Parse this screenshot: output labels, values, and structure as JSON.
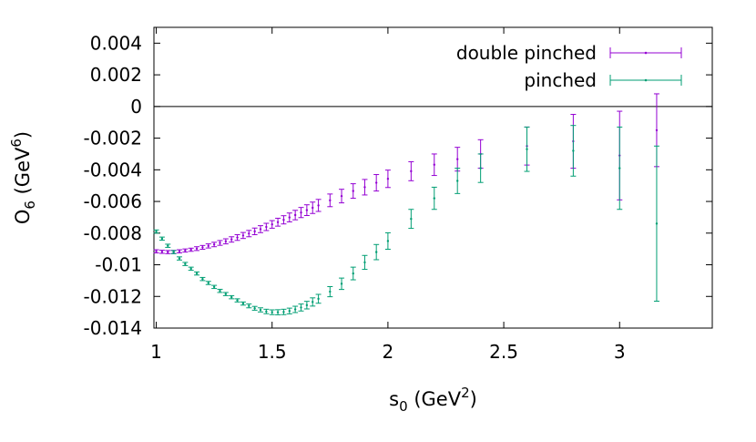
{
  "chart_data": {
    "type": "scatter",
    "xlabel": {
      "base": "s",
      "sub": "0",
      "unit_pre": " (GeV",
      "sup": "2",
      "unit_post": ")"
    },
    "ylabel": {
      "base": "O",
      "sub": "6",
      "unit_pre": " (GeV",
      "sup": "6",
      "unit_post": ")"
    },
    "xlim": [
      0.99,
      3.4
    ],
    "ylim": [
      -0.014,
      0.005
    ],
    "xticks": [
      1,
      1.5,
      2,
      2.5,
      3
    ],
    "xtick_labels": [
      "1",
      "1.5",
      "2",
      "2.5",
      "3"
    ],
    "yticks": [
      0.004,
      0.002,
      0,
      -0.002,
      -0.004,
      -0.006,
      -0.008,
      -0.01,
      -0.012,
      -0.014
    ],
    "ytick_labels": [
      "0.004",
      "0.002",
      "0",
      "-0.002",
      "-0.004",
      "-0.006",
      "-0.008",
      "-0.01",
      "-0.012",
      "-0.014"
    ],
    "zero_line": true,
    "grid": false,
    "legend_position": "top-right",
    "series": [
      {
        "name": "double pinched",
        "color": "#9400d3",
        "x": [
          1.0,
          1.025,
          1.05,
          1.075,
          1.1,
          1.125,
          1.15,
          1.175,
          1.2,
          1.225,
          1.25,
          1.275,
          1.3,
          1.325,
          1.35,
          1.375,
          1.4,
          1.425,
          1.45,
          1.475,
          1.5,
          1.525,
          1.55,
          1.575,
          1.6,
          1.625,
          1.65,
          1.675,
          1.7,
          1.75,
          1.8,
          1.85,
          1.9,
          1.95,
          2.0,
          2.1,
          2.2,
          2.3,
          2.4,
          2.6,
          2.8,
          3.0,
          3.16
        ],
        "y": [
          -0.00915,
          -0.00918,
          -0.0092,
          -0.00919,
          -0.00915,
          -0.0091,
          -0.00905,
          -0.00898,
          -0.0089,
          -0.00881,
          -0.00872,
          -0.00862,
          -0.00852,
          -0.0084,
          -0.00828,
          -0.00815,
          -0.00803,
          -0.00789,
          -0.00775,
          -0.00761,
          -0.00745,
          -0.00731,
          -0.00716,
          -0.00701,
          -0.00686,
          -0.0067,
          -0.00655,
          -0.0064,
          -0.00625,
          -0.00593,
          -0.00566,
          -0.00534,
          -0.0051,
          -0.00482,
          -0.00457,
          -0.00409,
          -0.00368,
          -0.00333,
          -0.003,
          -0.0025,
          -0.0022,
          -0.0031,
          -0.0015
        ],
        "err": [
          0.0001,
          0.0001,
          0.0001,
          0.0001,
          0.0001,
          0.0001,
          0.0001,
          0.00012,
          0.00012,
          0.00013,
          0.00014,
          0.00015,
          0.00016,
          0.00017,
          0.00018,
          0.00019,
          0.0002,
          0.00021,
          0.00022,
          0.00023,
          0.00024,
          0.00025,
          0.00026,
          0.00028,
          0.0003,
          0.00032,
          0.00034,
          0.00036,
          0.00038,
          0.0004,
          0.00043,
          0.00046,
          0.00049,
          0.00052,
          0.00055,
          0.0006,
          0.00068,
          0.00075,
          0.0009,
          0.0012,
          0.0017,
          0.0028,
          0.0023
        ]
      },
      {
        "name": "pinched",
        "color": "#009e73",
        "x": [
          1.0,
          1.025,
          1.05,
          1.075,
          1.1,
          1.125,
          1.15,
          1.175,
          1.2,
          1.225,
          1.25,
          1.275,
          1.3,
          1.325,
          1.35,
          1.375,
          1.4,
          1.425,
          1.45,
          1.475,
          1.5,
          1.525,
          1.55,
          1.575,
          1.6,
          1.625,
          1.65,
          1.675,
          1.7,
          1.75,
          1.8,
          1.85,
          1.9,
          1.95,
          2.0,
          2.1,
          2.2,
          2.3,
          2.4,
          2.6,
          2.8,
          3.0,
          3.16
        ],
        "y": [
          -0.0079,
          -0.00835,
          -0.0088,
          -0.0092,
          -0.0096,
          -0.00995,
          -0.01025,
          -0.01055,
          -0.0109,
          -0.01115,
          -0.0114,
          -0.01165,
          -0.01185,
          -0.01205,
          -0.01225,
          -0.01245,
          -0.0126,
          -0.01275,
          -0.01285,
          -0.01295,
          -0.013,
          -0.013,
          -0.01298,
          -0.01292,
          -0.01282,
          -0.0127,
          -0.01255,
          -0.01235,
          -0.01215,
          -0.0117,
          -0.0112,
          -0.01055,
          -0.00985,
          -0.0092,
          -0.0085,
          -0.0071,
          -0.0058,
          -0.0047,
          -0.0039,
          -0.0027,
          -0.0028,
          -0.0039,
          -0.0074
        ],
        "err": [
          0.0001,
          0.0001,
          0.0001,
          0.0001,
          0.0001,
          0.0001,
          0.0001,
          0.0001,
          0.0001,
          0.0001,
          0.0001,
          0.0001,
          0.0001,
          0.0001,
          0.0001,
          0.0001,
          0.00012,
          0.00012,
          0.00013,
          0.00014,
          0.00015,
          0.00016,
          0.00017,
          0.00018,
          0.0002,
          0.00022,
          0.00024,
          0.00026,
          0.00028,
          0.00032,
          0.00036,
          0.0004,
          0.00044,
          0.00048,
          0.00052,
          0.0006,
          0.0007,
          0.0008,
          0.0009,
          0.0014,
          0.0016,
          0.0026,
          0.0049
        ]
      }
    ]
  }
}
